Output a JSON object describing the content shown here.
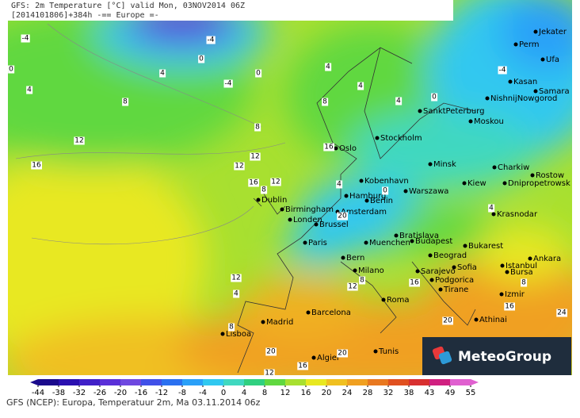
{
  "header": {
    "lines": [
      "GFS: 2m Temperature [°C] valid Mon, 03NOV2014 06Z",
      "[2014101806]+384h -== Europe =-"
    ]
  },
  "cities": [
    "Jekater",
    "Perm",
    "Ufa",
    "Kasan",
    "Samara",
    "NishnijNowgorod",
    "SanktPeterburg",
    "Moskou",
    "Stockholm",
    "Oslo",
    "Minsk",
    "Charkiw",
    "Rostow",
    "Dnipropetrowsk",
    "Kobenhavn",
    "Kiew",
    "Hamburg",
    "Warszawa",
    "Dublin",
    "Berlin",
    "Birmingham",
    "Amsterdam",
    "Londen",
    "Brussel",
    "Krasnodar",
    "Bratislava",
    "Budapest",
    "Paris",
    "Muenchen",
    "Bukarest",
    "Bern",
    "Beograd",
    "Ankara",
    "Istanbul",
    "Sofia",
    "Milano",
    "Sarajevo",
    "Bursa",
    "Podgorica",
    "Tirane",
    "Izmir",
    "Roma",
    "Barcelona",
    "Athinai",
    "Madrid",
    "Lisboa",
    "Tunis",
    "Algier"
  ],
  "contour_labels": [
    -4,
    0,
    4,
    0,
    -4,
    8,
    12,
    16,
    12,
    8,
    4,
    0,
    -4,
    -4,
    4,
    8,
    4,
    0,
    4,
    12,
    16,
    12,
    16,
    20,
    8,
    12,
    8,
    4,
    20,
    16,
    12,
    20,
    24,
    16,
    20,
    12,
    16,
    8,
    4,
    0,
    8,
    4
  ],
  "colorbar": {
    "ticks": [
      -44,
      -38,
      -32,
      -26,
      -20,
      -16,
      -12,
      -8,
      -4,
      0,
      4,
      8,
      12,
      16,
      20,
      24,
      28,
      32,
      38,
      43,
      49,
      55
    ],
    "colors": [
      "#1a0a8c",
      "#2a10b0",
      "#4020c8",
      "#5a30d8",
      "#6e48e0",
      "#4050e8",
      "#2a70f0",
      "#2aa0f8",
      "#30c8f0",
      "#40d8c0",
      "#30d080",
      "#60d840",
      "#a8e030",
      "#e8e820",
      "#f0c020",
      "#f0a020",
      "#e87820",
      "#e05020",
      "#d83030",
      "#d02080",
      "#e060d0"
    ]
  },
  "footer": "GFS (NCEP): Europa, Temperatuur 2m, Ma 03.11.2014 06z",
  "logo": "MeteoGroup"
}
